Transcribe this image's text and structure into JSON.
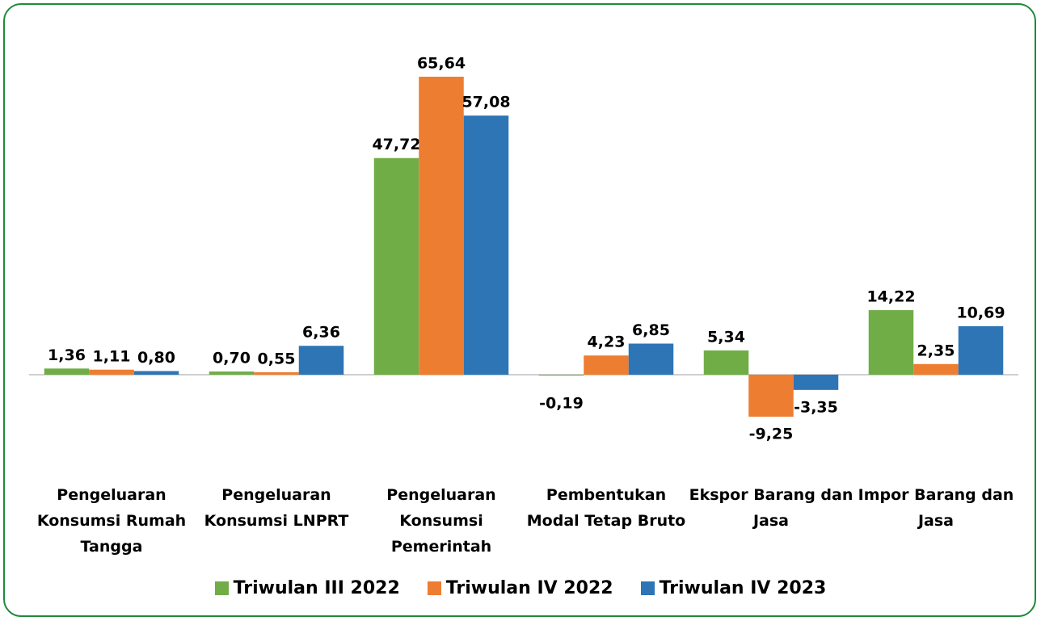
{
  "chart_data": {
    "type": "bar",
    "categories": [
      "Pengeluaran Konsumsi Rumah Tangga",
      "Pengeluaran Konsumsi LNPRT",
      "Pengeluaran Konsumsi Pemerintah",
      "Pembentukan Modal Tetap Bruto",
      "Ekspor Barang dan Jasa",
      "Impor Barang dan Jasa"
    ],
    "series": [
      {
        "name": "Triwulan III 2022",
        "color": "#70ad47",
        "values": [
          1.36,
          0.7,
          47.72,
          -0.19,
          5.34,
          14.22
        ],
        "value_labels": [
          "1,36",
          "0,70",
          "47,72",
          "-0,19",
          "5,34",
          "14,22"
        ]
      },
      {
        "name": "Triwulan IV 2022",
        "color": "#ed7d31",
        "values": [
          1.11,
          0.55,
          65.64,
          4.23,
          -9.25,
          2.35
        ],
        "value_labels": [
          "1,11",
          "0,55",
          "65,64",
          "4,23",
          "-9,25",
          "2,35"
        ]
      },
      {
        "name": "Triwulan IV 2023",
        "color": "#2e75b6",
        "values": [
          0.8,
          6.36,
          57.08,
          6.85,
          -3.35,
          10.69
        ],
        "value_labels": [
          "0,80",
          "6,36",
          "57,08",
          "6,85",
          "-3,35",
          "10,69"
        ]
      }
    ],
    "legend": "bottom"
  }
}
